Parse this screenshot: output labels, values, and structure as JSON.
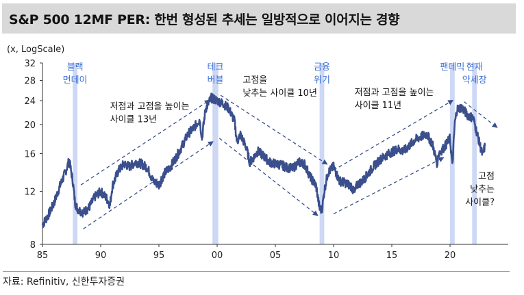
{
  "title": "S&P 500 12MF PER: 한번 형성된 추세는 일방적으로 이어지는 경향",
  "source": "자료: Refinitiv, 신한투자증권",
  "chart_data": {
    "type": "line",
    "ylabel": "(x, LogScale)",
    "y_scale": "log",
    "ylim": [
      8,
      32
    ],
    "y_ticks": [
      8,
      12,
      16,
      20,
      24,
      28,
      32
    ],
    "xlim": [
      1985,
      2025
    ],
    "x_ticks": [
      1985,
      1990,
      1995,
      2000,
      2005,
      2010,
      2015,
      2020
    ],
    "x_tick_labels": [
      "85",
      "90",
      "95",
      "00",
      "05",
      "10",
      "15",
      "20"
    ],
    "series": [
      {
        "color": "#3a4f8c",
        "x": [
          1985.0,
          1985.5,
          1986.0,
          1986.5,
          1987.0,
          1987.3,
          1987.6,
          1987.8,
          1988.0,
          1988.5,
          1989.0,
          1989.5,
          1990.0,
          1990.5,
          1990.8,
          1991.0,
          1991.5,
          1992.0,
          1992.5,
          1993.0,
          1993.5,
          1994.0,
          1994.5,
          1995.0,
          1995.5,
          1996.0,
          1996.5,
          1997.0,
          1997.5,
          1998.0,
          1998.5,
          1998.7,
          1999.0,
          1999.5,
          2000.0,
          2000.5,
          2001.0,
          2001.5,
          2001.7,
          2002.0,
          2002.5,
          2002.8,
          2003.0,
          2003.5,
          2004.0,
          2004.5,
          2005.0,
          2005.5,
          2006.0,
          2006.5,
          2007.0,
          2007.5,
          2008.0,
          2008.5,
          2008.8,
          2009.0,
          2009.2,
          2009.5,
          2010.0,
          2010.5,
          2011.0,
          2011.5,
          2011.8,
          2012.0,
          2012.5,
          2013.0,
          2013.5,
          2014.0,
          2014.5,
          2015.0,
          2015.5,
          2016.0,
          2016.5,
          2017.0,
          2017.5,
          2018.0,
          2018.5,
          2018.9,
          2019.0,
          2019.5,
          2020.0,
          2020.2,
          2020.4,
          2020.6,
          2021.0,
          2021.5,
          2022.0,
          2022.5,
          2022.8,
          2023.0
        ],
        "values": [
          9.3,
          10.0,
          11.0,
          12.5,
          14.0,
          15.2,
          13.0,
          11.0,
          10.5,
          10.2,
          10.6,
          11.5,
          12.0,
          11.4,
          10.8,
          12.5,
          14.0,
          14.8,
          14.5,
          15.0,
          14.8,
          14.4,
          13.0,
          12.6,
          13.8,
          14.5,
          15.6,
          17.0,
          18.6,
          19.5,
          20.8,
          18.0,
          22.5,
          24.5,
          24.0,
          23.5,
          22.6,
          20.5,
          17.5,
          18.5,
          16.8,
          15.0,
          15.3,
          16.3,
          15.7,
          15.0,
          14.8,
          14.7,
          14.4,
          14.3,
          15.0,
          14.8,
          13.4,
          12.5,
          10.5,
          10.4,
          12.0,
          13.8,
          14.5,
          13.0,
          12.8,
          12.5,
          11.8,
          12.6,
          13.0,
          13.8,
          14.6,
          15.3,
          15.8,
          16.2,
          16.6,
          16.3,
          17.0,
          17.8,
          18.2,
          18.6,
          17.2,
          14.8,
          16.0,
          16.8,
          18.0,
          14.5,
          20.0,
          22.5,
          22.8,
          21.5,
          21.0,
          17.5,
          15.8,
          17.0
        ]
      }
    ],
    "shaded_periods": [
      {
        "x0": 1987.6,
        "x1": 1988.0,
        "label": [
          "블랙",
          "먼데이"
        ]
      },
      {
        "x0": 1999.6,
        "x1": 2000.1,
        "label": [
          "테크",
          "버블"
        ]
      },
      {
        "x0": 2008.8,
        "x1": 2009.2,
        "label": [
          "금융",
          "위기"
        ]
      },
      {
        "x0": 2020.0,
        "x1": 2020.4,
        "label": [
          "팬데믹"
        ]
      },
      {
        "x0": 2021.9,
        "x1": 2022.3,
        "label": [
          "현재",
          "약세장"
        ]
      }
    ],
    "trend_arrows": [
      {
        "x0": 1988.3,
        "y0": 12.6,
        "x1": 1999.3,
        "y1": 24.0
      },
      {
        "x0": 1988.5,
        "y0": 9.0,
        "x1": 1999.6,
        "y1": 17.5
      },
      {
        "x0": 2000.3,
        "y0": 25.0,
        "x1": 2009.4,
        "y1": 14.8
      },
      {
        "x0": 2000.2,
        "y0": 18.0,
        "x1": 2008.6,
        "y1": 10.0
      },
      {
        "x0": 2010.0,
        "y0": 14.1,
        "x1": 2020.2,
        "y1": 24.0
      },
      {
        "x0": 2010.0,
        "y0": 10.1,
        "x1": 2019.4,
        "y1": 15.5
      },
      {
        "x0": 2021.2,
        "y0": 23.8,
        "x1": 2024.0,
        "y1": 19.6
      }
    ],
    "annotations": [
      {
        "text": [
          "저점과 고점을 높이는",
          "사이클 13년"
        ],
        "x": 1990.8,
        "y": 22.5
      },
      {
        "text": [
          "고점을",
          "낮추는 사이클 10년"
        ],
        "x": 2002.2,
        "y": 27.5
      },
      {
        "text": [
          "저점과 고점을 높이는",
          "사이클 11년"
        ],
        "x": 2011.8,
        "y": 25.0
      },
      {
        "text": [
          "고점",
          "낮추는",
          "사이클?"
        ],
        "x": 2022.4,
        "y": 13.2
      }
    ]
  }
}
